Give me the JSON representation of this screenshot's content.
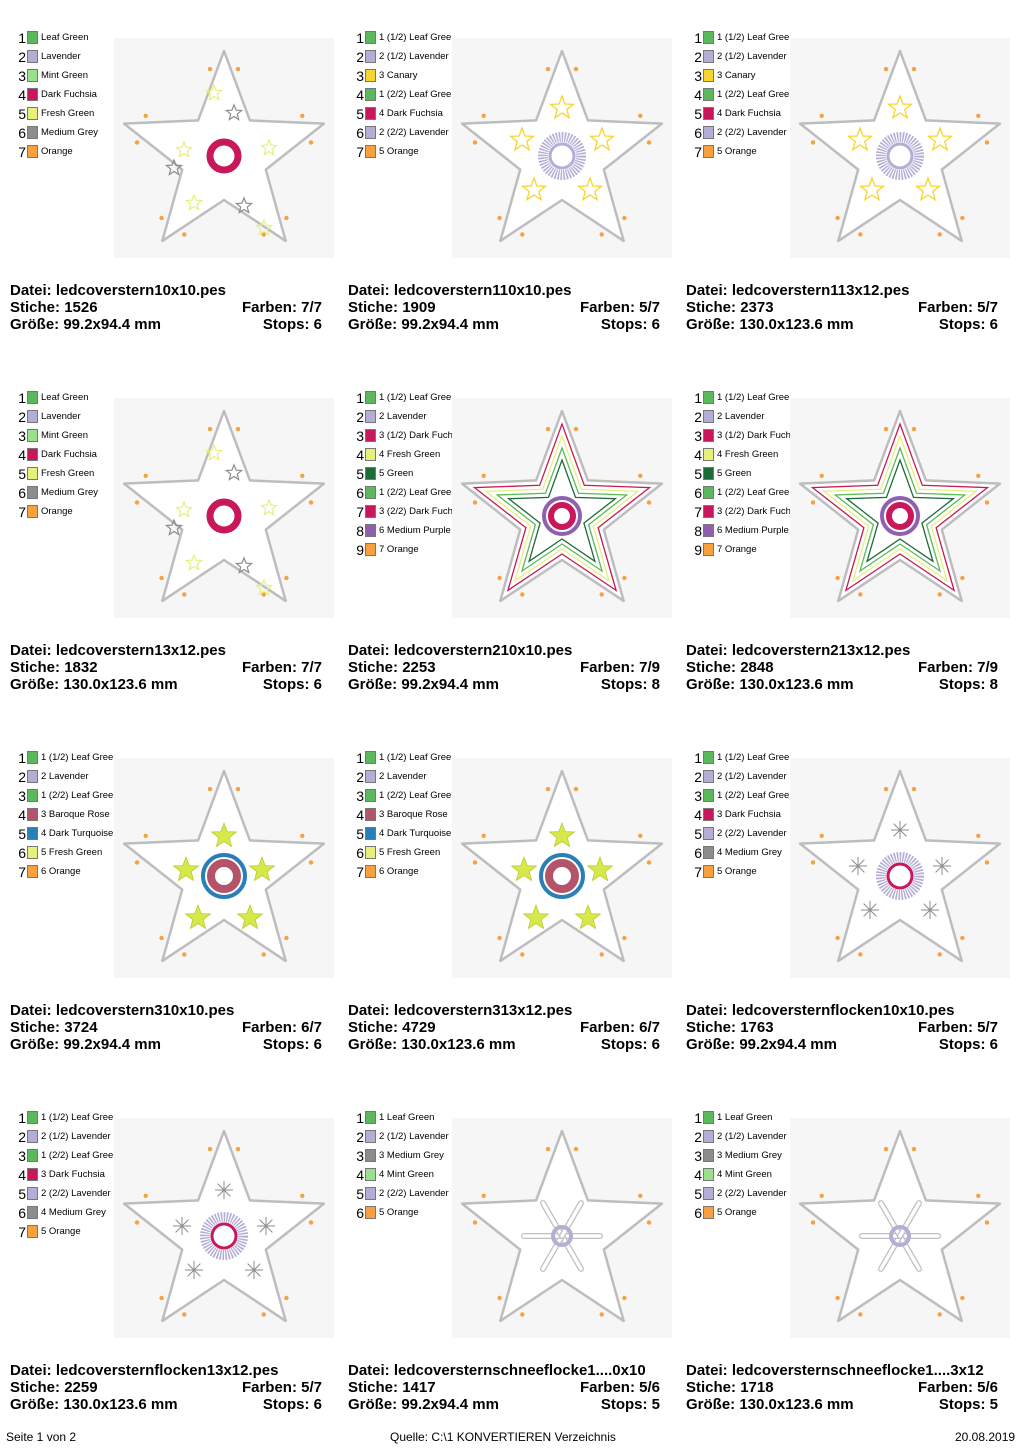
{
  "designs": [
    {
      "file": "ledcoverstern10x10.pes",
      "stitches": "1526",
      "colors": "7/7",
      "size": "99.2x94.4 mm",
      "stops": "6",
      "palette": [
        {
          "n": "1",
          "name": "Leaf Green",
          "color": "#5cb85c"
        },
        {
          "n": "2",
          "name": "Lavender",
          "color": "#b4aed6"
        },
        {
          "n": "3",
          "name": "Mint Green",
          "color": "#9be08a"
        },
        {
          "n": "4",
          "name": "Dark Fuchsia",
          "color": "#c8175a"
        },
        {
          "n": "5",
          "name": "Fresh Green",
          "color": "#e6f07a"
        },
        {
          "n": "6",
          "name": "Medium Grey",
          "color": "#8c8c8c"
        },
        {
          "n": "7",
          "name": "Orange",
          "color": "#f7a040"
        }
      ],
      "center": "ring-fuchsia",
      "decor": "stars-small"
    },
    {
      "file": "ledcoverstern110x10.pes",
      "stitches": "1909",
      "colors": "5/7",
      "size": "99.2x94.4 mm",
      "stops": "6",
      "palette": [
        {
          "n": "1",
          "name": "1 (1/2) Leaf Gree",
          "color": "#5cb85c"
        },
        {
          "n": "2",
          "name": "2 (1/2) Lavender",
          "color": "#b4aed6"
        },
        {
          "n": "3",
          "name": "3 Canary",
          "color": "#f5d630"
        },
        {
          "n": "4",
          "name": "1 (2/2) Leaf Gree",
          "color": "#5cb85c"
        },
        {
          "n": "5",
          "name": "4 Dark Fuchsia",
          "color": "#c8175a"
        },
        {
          "n": "6",
          "name": "2 (2/2) Lavender",
          "color": "#b4aed6"
        },
        {
          "n": "7",
          "name": "5 Orange",
          "color": "#f7a040"
        }
      ],
      "center": "fringe-lavender",
      "decor": "stars-outline"
    },
    {
      "file": "ledcoverstern113x12.pes",
      "stitches": "2373",
      "colors": "5/7",
      "size": "130.0x123.6 mm",
      "stops": "6",
      "palette": [
        {
          "n": "1",
          "name": "1 (1/2) Leaf Gree",
          "color": "#5cb85c"
        },
        {
          "n": "2",
          "name": "2 (1/2) Lavender",
          "color": "#b4aed6"
        },
        {
          "n": "3",
          "name": "3 Canary",
          "color": "#f5d630"
        },
        {
          "n": "4",
          "name": "1 (2/2) Leaf Gree",
          "color": "#5cb85c"
        },
        {
          "n": "5",
          "name": "4 Dark Fuchsia",
          "color": "#c8175a"
        },
        {
          "n": "6",
          "name": "2 (2/2) Lavender",
          "color": "#b4aed6"
        },
        {
          "n": "7",
          "name": "5 Orange",
          "color": "#f7a040"
        }
      ],
      "center": "fringe-lavender",
      "decor": "stars-outline"
    },
    {
      "file": "ledcoverstern13x12.pes",
      "stitches": "1832",
      "colors": "7/7",
      "size": "130.0x123.6 mm",
      "stops": "6",
      "palette": [
        {
          "n": "1",
          "name": "Leaf Green",
          "color": "#5cb85c"
        },
        {
          "n": "2",
          "name": "Lavender",
          "color": "#b4aed6"
        },
        {
          "n": "3",
          "name": "Mint Green",
          "color": "#9be08a"
        },
        {
          "n": "4",
          "name": "Dark Fuchsia",
          "color": "#c8175a"
        },
        {
          "n": "5",
          "name": "Fresh Green",
          "color": "#e6f07a"
        },
        {
          "n": "6",
          "name": "Medium Grey",
          "color": "#8c8c8c"
        },
        {
          "n": "7",
          "name": "Orange",
          "color": "#f7a040"
        }
      ],
      "center": "ring-fuchsia",
      "decor": "stars-small"
    },
    {
      "file": "ledcoverstern210x10.pes",
      "stitches": "2253",
      "colors": "7/9",
      "size": "99.2x94.4 mm",
      "stops": "8",
      "palette": [
        {
          "n": "1",
          "name": "1 (1/2) Leaf Gree",
          "color": "#5cb85c"
        },
        {
          "n": "2",
          "name": "2 Lavender",
          "color": "#b4aed6"
        },
        {
          "n": "3",
          "name": "3 (1/2) Dark Fuch",
          "color": "#c8175a"
        },
        {
          "n": "4",
          "name": "4 Fresh Green",
          "color": "#e6f07a"
        },
        {
          "n": "5",
          "name": "5 Green",
          "color": "#1e6b3a"
        },
        {
          "n": "6",
          "name": "1 (2/2) Leaf Gree",
          "color": "#5cb85c"
        },
        {
          "n": "7",
          "name": "3 (2/2) Dark Fuch",
          "color": "#c8175a"
        },
        {
          "n": "8",
          "name": "6 Medium Purple",
          "color": "#9060b0"
        },
        {
          "n": "9",
          "name": "7 Orange",
          "color": "#f7a040"
        }
      ],
      "center": "ring-purple",
      "decor": "nested"
    },
    {
      "file": "ledcoverstern213x12.pes",
      "stitches": "2848",
      "colors": "7/9",
      "size": "130.0x123.6 mm",
      "stops": "8",
      "palette": [
        {
          "n": "1",
          "name": "1 (1/2) Leaf Gree",
          "color": "#5cb85c"
        },
        {
          "n": "2",
          "name": "2 Lavender",
          "color": "#b4aed6"
        },
        {
          "n": "3",
          "name": "3 (1/2) Dark Fuch",
          "color": "#c8175a"
        },
        {
          "n": "4",
          "name": "4 Fresh Green",
          "color": "#e6f07a"
        },
        {
          "n": "5",
          "name": "5 Green",
          "color": "#1e6b3a"
        },
        {
          "n": "6",
          "name": "1 (2/2) Leaf Gree",
          "color": "#5cb85c"
        },
        {
          "n": "7",
          "name": "3 (2/2) Dark Fuch",
          "color": "#c8175a"
        },
        {
          "n": "8",
          "name": "6 Medium Purple",
          "color": "#9060b0"
        },
        {
          "n": "9",
          "name": "7 Orange",
          "color": "#f7a040"
        }
      ],
      "center": "ring-purple",
      "decor": "nested"
    },
    {
      "file": "ledcoverstern310x10.pes",
      "stitches": "3724",
      "colors": "6/7",
      "size": "99.2x94.4 mm",
      "stops": "6",
      "palette": [
        {
          "n": "1",
          "name": "1 (1/2) Leaf Gree",
          "color": "#5cb85c"
        },
        {
          "n": "2",
          "name": "2 Lavender",
          "color": "#b4aed6"
        },
        {
          "n": "3",
          "name": "1 (2/2) Leaf Gree",
          "color": "#5cb85c"
        },
        {
          "n": "4",
          "name": "3 Baroque Rose",
          "color": "#b4546a"
        },
        {
          "n": "5",
          "name": "4 Dark Turquoise",
          "color": "#2a7fb8"
        },
        {
          "n": "6",
          "name": "5 Fresh Green",
          "color": "#e6f07a"
        },
        {
          "n": "7",
          "name": "6 Orange",
          "color": "#f7a040"
        }
      ],
      "center": "ring-blue",
      "decor": "stars-filled"
    },
    {
      "file": "ledcoverstern313x12.pes",
      "stitches": "4729",
      "colors": "6/7",
      "size": "130.0x123.6 mm",
      "stops": "6",
      "palette": [
        {
          "n": "1",
          "name": "1 (1/2) Leaf Gree",
          "color": "#5cb85c"
        },
        {
          "n": "2",
          "name": "2 Lavender",
          "color": "#b4aed6"
        },
        {
          "n": "3",
          "name": "1 (2/2) Leaf Gree",
          "color": "#5cb85c"
        },
        {
          "n": "4",
          "name": "3 Baroque Rose",
          "color": "#b4546a"
        },
        {
          "n": "5",
          "name": "4 Dark Turquoise",
          "color": "#2a7fb8"
        },
        {
          "n": "6",
          "name": "5 Fresh Green",
          "color": "#e6f07a"
        },
        {
          "n": "7",
          "name": "6 Orange",
          "color": "#f7a040"
        }
      ],
      "center": "ring-blue",
      "decor": "stars-filled"
    },
    {
      "file": "ledcoversternflocken10x10.pes",
      "stitches": "1763",
      "colors": "5/7",
      "size": "99.2x94.4 mm",
      "stops": "6",
      "palette": [
        {
          "n": "1",
          "name": "1 (1/2) Leaf Gree",
          "color": "#5cb85c"
        },
        {
          "n": "2",
          "name": "2 (1/2) Lavender",
          "color": "#b4aed6"
        },
        {
          "n": "3",
          "name": "1 (2/2) Leaf Gree",
          "color": "#5cb85c"
        },
        {
          "n": "4",
          "name": "3 Dark Fuchsia",
          "color": "#c8175a"
        },
        {
          "n": "5",
          "name": "2 (2/2) Lavender",
          "color": "#b4aed6"
        },
        {
          "n": "6",
          "name": "4 Medium Grey",
          "color": "#8c8c8c"
        },
        {
          "n": "7",
          "name": "5 Orange",
          "color": "#f7a040"
        }
      ],
      "center": "fringe-lavender-fuchsia",
      "decor": "flakes"
    },
    {
      "file": "ledcoversternflocken13x12.pes",
      "stitches": "2259",
      "colors": "5/7",
      "size": "130.0x123.6 mm",
      "stops": "6",
      "palette": [
        {
          "n": "1",
          "name": "1 (1/2) Leaf Gree",
          "color": "#5cb85c"
        },
        {
          "n": "2",
          "name": "2 (1/2) Lavender",
          "color": "#b4aed6"
        },
        {
          "n": "3",
          "name": "1 (2/2) Leaf Gree",
          "color": "#5cb85c"
        },
        {
          "n": "4",
          "name": "3 Dark Fuchsia",
          "color": "#c8175a"
        },
        {
          "n": "5",
          "name": "2 (2/2) Lavender",
          "color": "#b4aed6"
        },
        {
          "n": "6",
          "name": "4 Medium Grey",
          "color": "#8c8c8c"
        },
        {
          "n": "7",
          "name": "5 Orange",
          "color": "#f7a040"
        }
      ],
      "center": "fringe-lavender-fuchsia",
      "decor": "flakes"
    },
    {
      "file": "ledcoversternschneeflocke1....0x10",
      "stitches": "1417",
      "colors": "5/6",
      "size": "99.2x94.4 mm",
      "stops": "5",
      "palette": [
        {
          "n": "1",
          "name": "1 Leaf Green",
          "color": "#5cb85c"
        },
        {
          "n": "2",
          "name": "2 (1/2) Lavender",
          "color": "#b4aed6"
        },
        {
          "n": "3",
          "name": "3 Medium Grey",
          "color": "#8c8c8c"
        },
        {
          "n": "4",
          "name": "4 Mint Green",
          "color": "#9be08a"
        },
        {
          "n": "5",
          "name": "2 (2/2) Lavender",
          "color": "#b4aed6"
        },
        {
          "n": "6",
          "name": "5 Orange",
          "color": "#f7a040"
        }
      ],
      "center": "ring-lavender",
      "decor": "snowflake"
    },
    {
      "file": "ledcoversternschneeflocke1....3x12",
      "stitches": "1718",
      "colors": "5/6",
      "size": "130.0x123.6 mm",
      "stops": "5",
      "palette": [
        {
          "n": "1",
          "name": "1 Leaf Green",
          "color": "#5cb85c"
        },
        {
          "n": "2",
          "name": "2 (1/2) Lavender",
          "color": "#b4aed6"
        },
        {
          "n": "3",
          "name": "3 Medium Grey",
          "color": "#8c8c8c"
        },
        {
          "n": "4",
          "name": "4 Mint Green",
          "color": "#9be08a"
        },
        {
          "n": "5",
          "name": "2 (2/2) Lavender",
          "color": "#b4aed6"
        },
        {
          "n": "6",
          "name": "5 Orange",
          "color": "#f7a040"
        }
      ],
      "center": "ring-lavender",
      "decor": "snowflake"
    }
  ],
  "labels": {
    "file": "Datei:",
    "stitches": "Stiche:",
    "colors": "Farben:",
    "size": "Größe:",
    "stops": "Stops:"
  },
  "footer": {
    "page": "Seite 1 von 2",
    "source": "Quelle: C:\\1 KONVERTIEREN Verzeichnis",
    "date": "20.08.2019"
  }
}
